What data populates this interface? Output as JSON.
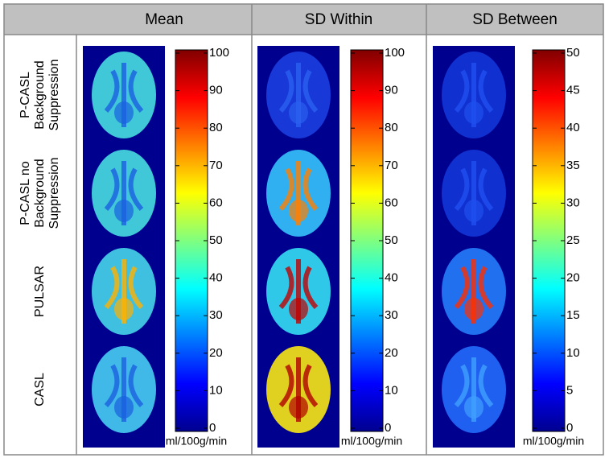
{
  "header": {
    "columns": [
      "Mean",
      "SD Within",
      "SD Between"
    ]
  },
  "rows": [
    {
      "label_lines": [
        "P-CASL",
        "Background",
        "Suppression"
      ]
    },
    {
      "label_lines": [
        "P-CASL no",
        "Background",
        "Suppression"
      ]
    },
    {
      "label_lines": [
        "PULSAR"
      ]
    },
    {
      "label_lines": [
        "CASL"
      ]
    }
  ],
  "colorbars": [
    {
      "lim": [
        0,
        100
      ],
      "ticks": [
        0,
        10,
        20,
        30,
        40,
        50,
        60,
        70,
        80,
        90,
        100
      ],
      "unit": "ml/100g/min"
    },
    {
      "lim": [
        0,
        100
      ],
      "ticks": [
        0,
        10,
        20,
        30,
        40,
        50,
        60,
        70,
        80,
        90,
        100
      ],
      "unit": "ml/100g/min"
    },
    {
      "lim": [
        0,
        50
      ],
      "ticks": [
        0,
        5,
        10,
        15,
        20,
        25,
        30,
        35,
        40,
        45,
        50
      ],
      "unit": "ml/100g/min"
    }
  ]
}
